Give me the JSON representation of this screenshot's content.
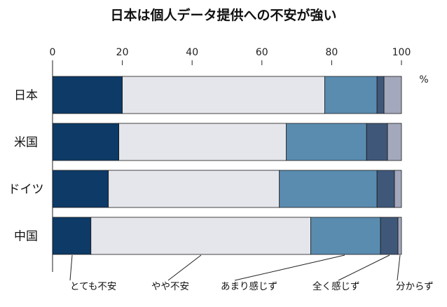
{
  "chart_data": {
    "type": "bar",
    "orientation": "horizontal",
    "stacked": true,
    "title": "日本は個人データ提供への不安が強い",
    "unit": "%",
    "xlim": [
      0,
      100
    ],
    "xticks": [
      0,
      20,
      40,
      60,
      80,
      100
    ],
    "categories": [
      "日本",
      "米国",
      "ドイツ",
      "中国"
    ],
    "series": [
      {
        "name": "とても不安",
        "color": "#0d3a66",
        "values": [
          20,
          19,
          16,
          11
        ]
      },
      {
        "name": "やや不安",
        "color": "#e4e6ec",
        "values": [
          58,
          48,
          49,
          63
        ]
      },
      {
        "name": "あまり感じず",
        "color": "#5a8cb0",
        "values": [
          15,
          23,
          28,
          20
        ]
      },
      {
        "name": "全く感じず",
        "color": "#3f587a",
        "values": [
          2,
          6,
          5,
          5
        ]
      },
      {
        "name": "分からず",
        "color": "#a4a8bd",
        "values": [
          5,
          4,
          2,
          1
        ]
      }
    ],
    "grid": false,
    "legend": "bottom"
  }
}
